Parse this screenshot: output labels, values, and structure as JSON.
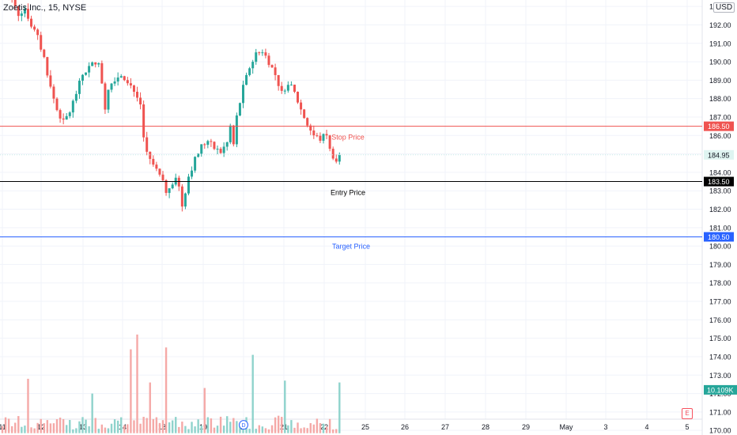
{
  "header": {
    "symbol_title": "Zoetis Inc., 15, NYSE",
    "currency": "USD"
  },
  "colors": {
    "up": "#26a69a",
    "down": "#ef5350",
    "stop": "#ef5350",
    "entry": "#000000",
    "target": "#2962ff",
    "grid": "#f0f3fa",
    "axis_text": "#131722",
    "vol_up": "#8fd3cc",
    "vol_down": "#f5a9a7"
  },
  "chart_data": {
    "type": "candlestick",
    "y_axis": {
      "min": 169.75,
      "max": 193.35,
      "ticks": [
        170.0,
        171.0,
        172.0,
        173.0,
        174.0,
        175.0,
        176.0,
        177.0,
        178.0,
        179.0,
        180.0,
        181.0,
        182.0,
        183.0,
        184.0,
        185.0,
        186.0,
        187.0,
        188.0,
        189.0,
        190.0,
        191.0,
        192.0,
        193.0
      ],
      "tick_labels": [
        "170.00",
        "171.00",
        "172.00",
        "173.00",
        "174.00",
        "175.00",
        "176.00",
        "177.00",
        "178.00",
        "179.00",
        "180.00",
        "181.00",
        "182.00",
        "183.00",
        "184.00",
        "185.00",
        "186.00",
        "187.00",
        "188.00",
        "189.00",
        "190.00",
        "191.00",
        "192.00",
        "193.00"
      ]
    },
    "x_axis": {
      "labels": [
        "11",
        "12",
        "13",
        "14",
        "18",
        "19",
        "20",
        "21",
        "22",
        "25",
        "26",
        "27",
        "28",
        "29",
        "May",
        "3",
        "4",
        "5"
      ]
    },
    "horizontal_lines": [
      {
        "label": "Stop Price",
        "value": 186.5,
        "price_label": "186.50",
        "color": "#ef5350"
      },
      {
        "label": "Entry Price",
        "value": 183.5,
        "price_label": "183.50",
        "color": "#000000"
      },
      {
        "label": "Target Price",
        "value": 180.5,
        "price_label": "180.50",
        "color": "#2962ff"
      }
    ],
    "last_price": {
      "value": 184.95,
      "label": "184.95"
    },
    "volume_label": "10.109K",
    "dividend_marker": "D",
    "settings_badge": "E",
    "close_path": [
      [
        0,
        193.6
      ],
      [
        3,
        193.3
      ],
      [
        5,
        192.6
      ],
      [
        7,
        192.9
      ],
      [
        9,
        192.0
      ],
      [
        11,
        191.3
      ],
      [
        13,
        190.2
      ],
      [
        15,
        188.6
      ],
      [
        17,
        187.4
      ],
      [
        19,
        186.7
      ],
      [
        21,
        187.3
      ],
      [
        23,
        188.3
      ],
      [
        25,
        189.3
      ],
      [
        27,
        189.7
      ],
      [
        29,
        190.0
      ],
      [
        30,
        189.8
      ],
      [
        31,
        188.9
      ],
      [
        32,
        187.5
      ],
      [
        33,
        188.6
      ],
      [
        35,
        189.1
      ],
      [
        37,
        189.3
      ],
      [
        39,
        189.0
      ],
      [
        41,
        188.4
      ],
      [
        43,
        187.7
      ],
      [
        44,
        185.9
      ],
      [
        45,
        185.1
      ],
      [
        47,
        184.4
      ],
      [
        49,
        183.8
      ],
      [
        51,
        183.0
      ],
      [
        52,
        183.2
      ],
      [
        54,
        183.8
      ],
      [
        55,
        183.2
      ],
      [
        56,
        182.2
      ],
      [
        58,
        183.8
      ],
      [
        60,
        184.7
      ],
      [
        62,
        185.4
      ],
      [
        64,
        185.7
      ],
      [
        66,
        185.3
      ],
      [
        68,
        185.1
      ],
      [
        70,
        185.6
      ],
      [
        71,
        186.5
      ],
      [
        72,
        185.5
      ],
      [
        73,
        187.0
      ],
      [
        75,
        188.6
      ],
      [
        77,
        189.7
      ],
      [
        79,
        190.4
      ],
      [
        81,
        190.6
      ],
      [
        83,
        190.0
      ],
      [
        85,
        189.3
      ],
      [
        87,
        188.3
      ],
      [
        89,
        188.9
      ],
      [
        91,
        188.3
      ],
      [
        93,
        187.4
      ],
      [
        95,
        186.6
      ],
      [
        97,
        186.0
      ],
      [
        99,
        185.8
      ],
      [
        101,
        186.1
      ],
      [
        102,
        185.2
      ],
      [
        104,
        184.6
      ],
      [
        105,
        184.95
      ]
    ],
    "volume_spikes": [
      [
        8,
        172.8
      ],
      [
        28,
        172.0
      ],
      [
        40,
        174.4
      ],
      [
        42,
        175.2
      ],
      [
        46,
        172.6
      ],
      [
        51,
        174.5
      ],
      [
        63,
        172.3
      ],
      [
        78,
        174.1
      ],
      [
        88,
        172.7
      ]
    ]
  }
}
